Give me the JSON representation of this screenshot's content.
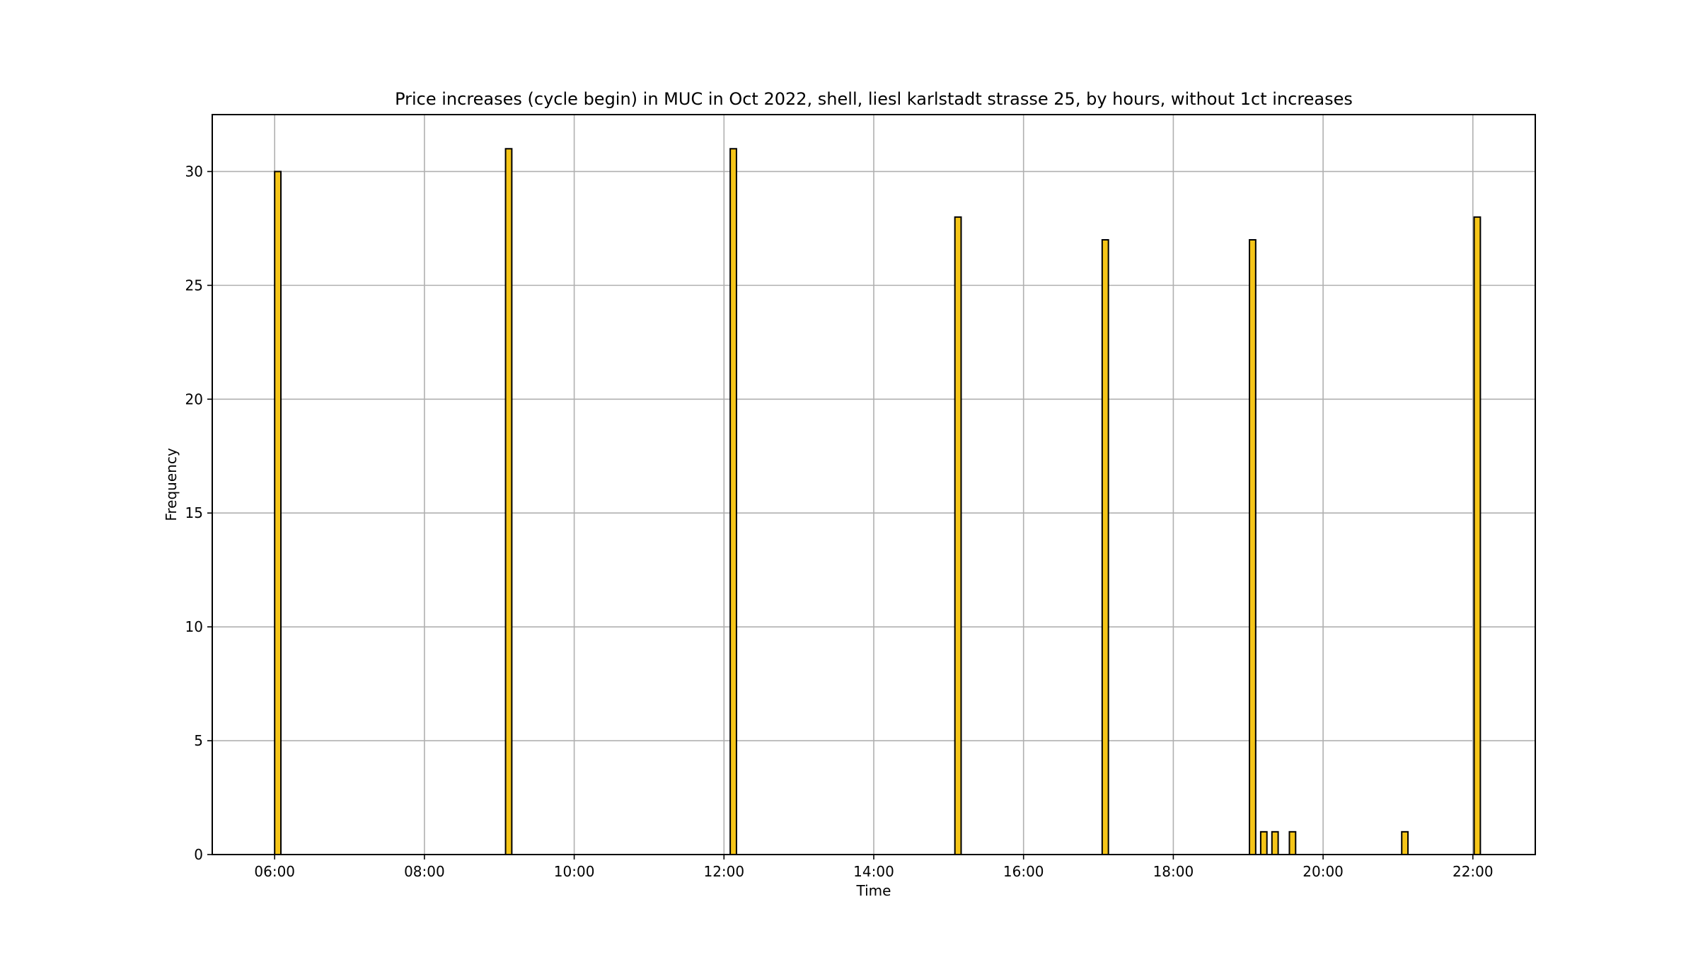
{
  "chart_data": {
    "type": "bar",
    "title": "Price increases (cycle begin) in MUC in Oct 2022, shell, liesl karlstadt strasse 25, by hours, without 1ct increases",
    "xlabel": "Time",
    "ylabel": "Frequency",
    "xlim": [
      "05:10",
      "22:50"
    ],
    "ylim": [
      0,
      32.5
    ],
    "grid": true,
    "bar_color": "#f5c518",
    "edge_color": "#000000",
    "bar_width_minutes": 5,
    "x_ticks": [
      "06:00",
      "08:00",
      "10:00",
      "12:00",
      "14:00",
      "16:00",
      "18:00",
      "20:00",
      "22:00"
    ],
    "y_ticks": [
      0,
      5,
      10,
      15,
      20,
      25,
      30
    ],
    "bars": [
      {
        "x": "06:00",
        "value": 30
      },
      {
        "x": "09:05",
        "value": 31
      },
      {
        "x": "12:05",
        "value": 31
      },
      {
        "x": "15:05",
        "value": 28
      },
      {
        "x": "17:03",
        "value": 27
      },
      {
        "x": "19:01",
        "value": 27
      },
      {
        "x": "19:10",
        "value": 1
      },
      {
        "x": "19:19",
        "value": 1
      },
      {
        "x": "19:33",
        "value": 1
      },
      {
        "x": "21:03",
        "value": 1
      },
      {
        "x": "22:01",
        "value": 28
      }
    ]
  }
}
